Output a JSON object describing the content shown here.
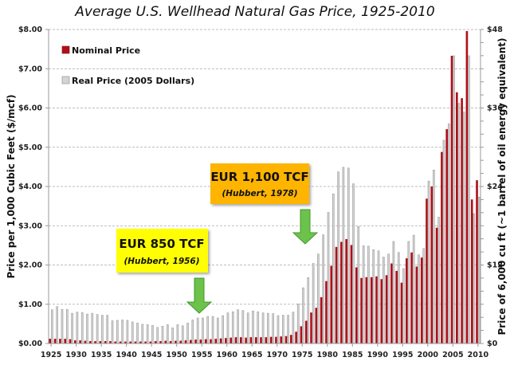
{
  "chart_data": {
    "type": "bar",
    "title": "Average U.S. Wellhead Natural Gas Price, 1925-2010",
    "ylabel": "Price per 1,000 Cubic Feet ($/mcf)",
    "y2label": "Price of 6,000 cu ft (~1 barrel of oil energy equivalent)",
    "xlabel": "",
    "ylim": [
      0,
      8
    ],
    "y2lim": [
      0,
      48
    ],
    "grid": true,
    "legend_position": "top-left",
    "y_ticks": [
      "$0.00",
      "$1.00",
      "$2.00",
      "$3.00",
      "$4.00",
      "$5.00",
      "$6.00",
      "$7.00",
      "$8.00"
    ],
    "y2_ticks": [
      "$0",
      "$12",
      "$24",
      "$36",
      "$48"
    ],
    "x_tick_labels": [
      "1925",
      "1930",
      "1935",
      "1940",
      "1945",
      "1950",
      "1955",
      "1960",
      "1965",
      "1970",
      "1975",
      "1980",
      "1985",
      "1990",
      "1995",
      "2000",
      "2005",
      "2010"
    ],
    "x": [
      1925,
      1926,
      1927,
      1928,
      1929,
      1930,
      1931,
      1932,
      1933,
      1934,
      1935,
      1936,
      1937,
      1938,
      1939,
      1940,
      1941,
      1942,
      1943,
      1944,
      1945,
      1946,
      1947,
      1948,
      1949,
      1950,
      1951,
      1952,
      1953,
      1954,
      1955,
      1956,
      1957,
      1958,
      1959,
      1960,
      1961,
      1962,
      1963,
      1964,
      1965,
      1966,
      1967,
      1968,
      1969,
      1970,
      1971,
      1972,
      1973,
      1974,
      1975,
      1976,
      1977,
      1978,
      1979,
      1980,
      1981,
      1982,
      1983,
      1984,
      1985,
      1986,
      1987,
      1988,
      1989,
      1990,
      1991,
      1992,
      1993,
      1994,
      1995,
      1996,
      1997,
      1998,
      1999,
      2000,
      2001,
      2002,
      2003,
      2004,
      2005,
      2006,
      2007,
      2008,
      2009,
      2010
    ],
    "series": [
      {
        "name": "Nominal Price",
        "color": "#b0101a",
        "values": [
          0.12,
          0.12,
          0.12,
          0.12,
          0.11,
          0.08,
          0.08,
          0.07,
          0.06,
          0.06,
          0.06,
          0.06,
          0.06,
          0.05,
          0.05,
          0.05,
          0.05,
          0.05,
          0.05,
          0.05,
          0.05,
          0.06,
          0.06,
          0.07,
          0.06,
          0.07,
          0.07,
          0.08,
          0.09,
          0.1,
          0.1,
          0.11,
          0.11,
          0.12,
          0.13,
          0.14,
          0.15,
          0.16,
          0.16,
          0.15,
          0.16,
          0.16,
          0.16,
          0.16,
          0.17,
          0.17,
          0.18,
          0.19,
          0.22,
          0.3,
          0.44,
          0.58,
          0.79,
          0.91,
          1.18,
          1.59,
          1.98,
          2.46,
          2.59,
          2.66,
          2.51,
          1.94,
          1.67,
          1.69,
          1.69,
          1.71,
          1.64,
          1.74,
          2.04,
          1.85,
          1.55,
          2.17,
          2.32,
          1.96,
          2.19,
          3.69,
          4.0,
          2.95,
          4.88,
          5.46,
          7.33,
          6.4,
          6.25,
          7.96,
          3.67,
          4.16
        ]
      },
      {
        "name": "Real Price (2005 Dollars)",
        "color": "#d4d4d4",
        "values": [
          0.86,
          0.94,
          0.87,
          0.87,
          0.77,
          0.8,
          0.79,
          0.75,
          0.77,
          0.74,
          0.72,
          0.72,
          0.58,
          0.59,
          0.6,
          0.59,
          0.55,
          0.52,
          0.49,
          0.48,
          0.46,
          0.41,
          0.44,
          0.48,
          0.4,
          0.48,
          0.45,
          0.52,
          0.6,
          0.65,
          0.65,
          0.69,
          0.69,
          0.65,
          0.71,
          0.78,
          0.81,
          0.86,
          0.84,
          0.78,
          0.83,
          0.81,
          0.78,
          0.77,
          0.76,
          0.71,
          0.72,
          0.72,
          0.8,
          1.01,
          1.42,
          1.68,
          2.04,
          2.28,
          2.77,
          3.34,
          3.81,
          4.37,
          4.49,
          4.47,
          4.07,
          2.98,
          2.49,
          2.48,
          2.39,
          2.36,
          2.2,
          2.28,
          2.6,
          2.32,
          1.91,
          2.6,
          2.76,
          2.26,
          2.42,
          4.14,
          4.42,
          3.22,
          5.18,
          5.6,
          7.33,
          6.12,
          5.9,
          7.33,
          3.31,
          3.73
        ]
      }
    ],
    "annotations": [
      {
        "text": "EUR 850 TCF",
        "subtext": "(Hubbert, 1956)",
        "arrow_year": 1956,
        "box_color": "#ffff00"
      },
      {
        "text": "EUR 1,100 TCF",
        "subtext": "(Hubbert, 1978)",
        "arrow_year": 1978,
        "box_color": "#ffb400"
      }
    ],
    "arrow_color": "#6cc24a"
  }
}
